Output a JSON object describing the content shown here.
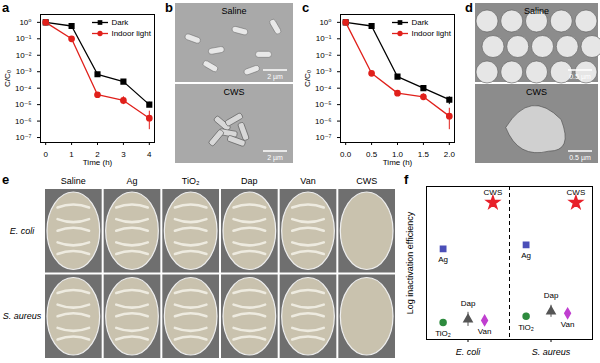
{
  "chart_data": [
    {
      "type": "line",
      "title": "a",
      "x_label": "Time (h)",
      "y_label": "C/C₀",
      "log": "y",
      "legend": "top-right",
      "x": [
        0,
        1,
        2,
        3,
        4
      ],
      "series": [
        {
          "name": "Dark",
          "color": "#000000",
          "marker": "square",
          "line_style": "solid",
          "values": [
            1,
            0.6,
            0.0007,
            0.00025,
            1e-05
          ],
          "errors": [
            null,
            null,
            null,
            null,
            [
              7e-06,
              1.4e-05
            ]
          ]
        },
        {
          "name": "Indoor light",
          "color": "#e0201b",
          "marker": "circle",
          "line_style": "solid",
          "values": [
            1,
            0.1,
            4e-05,
            1.8e-05,
            1.5e-06
          ],
          "errors": [
            null,
            null,
            null,
            [
              1e-05,
              3e-05
            ],
            [
              3e-07,
              4e-06
            ]
          ]
        }
      ],
      "xlim": [
        -0.2,
        4.2
      ],
      "xticks": [
        0,
        1,
        2,
        3,
        4
      ],
      "ylim": [
        5e-08,
        3
      ],
      "yticks": [
        {
          "value": 1,
          "label": "10⁰"
        },
        {
          "value": 0.1,
          "label": "10⁻¹"
        },
        {
          "value": 0.01,
          "label": "10⁻²"
        },
        {
          "value": 0.001,
          "label": "10⁻³"
        },
        {
          "value": 0.0001,
          "label": "10⁻⁴"
        },
        {
          "value": 1e-05,
          "label": "10⁻⁵"
        },
        {
          "value": 1e-06,
          "label": "10⁻⁶"
        },
        {
          "value": 1e-07,
          "label": "10⁻⁷"
        }
      ]
    },
    {
      "type": "line",
      "title": "c",
      "x_label": "Time (h)",
      "y_label": "C/C₀",
      "log": "y",
      "legend": "top-right",
      "x": [
        0,
        0.5,
        1,
        1.5,
        2
      ],
      "series": [
        {
          "name": "Dark",
          "color": "#000000",
          "marker": "square",
          "line_style": "solid",
          "values": [
            1,
            0.6,
            0.0005,
            0.0001,
            2e-05
          ],
          "errors": [
            null,
            null,
            null,
            null,
            [
              1e-05,
              3e-05
            ]
          ]
        },
        {
          "name": "Indoor light",
          "color": "#e0201b",
          "marker": "circle",
          "line_style": "solid",
          "values": [
            1,
            0.0008,
            5e-05,
            3e-05,
            2e-06
          ],
          "errors": [
            null,
            null,
            null,
            [
              2e-05,
              4.5e-05
            ],
            [
              3e-07,
              6e-06
            ]
          ]
        }
      ],
      "xlim": [
        -0.1,
        2.1
      ],
      "xticks": [
        {
          "value": 0,
          "label": "0.0"
        },
        0.5,
        {
          "value": 1,
          "label": "1.0"
        },
        1.5,
        {
          "value": 2,
          "label": "2.0"
        }
      ],
      "ylim": [
        5e-08,
        3
      ],
      "yticks": [
        {
          "value": 1,
          "label": "10⁰"
        },
        {
          "value": 0.1,
          "label": "10⁻¹"
        },
        {
          "value": 0.01,
          "label": "10⁻²"
        },
        {
          "value": 0.001,
          "label": "10⁻³"
        },
        {
          "value": 0.0001,
          "label": "10⁻⁴"
        },
        {
          "value": 1e-05,
          "label": "10⁻⁵"
        },
        {
          "value": 1e-06,
          "label": "10⁻⁶"
        },
        {
          "value": 1e-07,
          "label": "10⁻⁷"
        }
      ]
    },
    {
      "type": "scatter",
      "title": "f",
      "y_label": "Log inactivation efficiency",
      "tick_labels": "x",
      "categories": [
        "E. coli",
        "S. aureus"
      ],
      "series": [
        {
          "name": "Ag",
          "color": "#4b4fb8",
          "marker": "square",
          "values": [
            3.7,
            3.9
          ],
          "errors": [
            0.1,
            0.1
          ]
        },
        {
          "name": "TiO₂",
          "color": "#2e8b3e",
          "marker": "circle",
          "values": [
            0.05,
            0.35
          ],
          "errors": [
            0.05,
            0.15
          ]
        },
        {
          "name": "Dap",
          "color": "#555555",
          "marker": "triangle",
          "values": [
            0.2,
            0.6
          ],
          "errors": [
            0.35,
            0.3
          ]
        },
        {
          "name": "Van",
          "color": "#c03fd0",
          "marker": "diamond",
          "values": [
            0.15,
            0.5
          ],
          "errors": [
            0.1,
            0.15
          ]
        },
        {
          "name": "CWS",
          "color": "#e8202a",
          "marker": "star",
          "values": [
            6,
            6
          ],
          "errors": [
            0,
            0
          ]
        }
      ],
      "ylim": [
        -0.8,
        6.8
      ]
    }
  ],
  "images": [
    {
      "title": "b",
      "panels": [
        {
          "label": "Saline",
          "scale_bar": "2 µm"
        },
        {
          "label": "CWS",
          "scale_bar": "2 µm"
        }
      ]
    },
    {
      "title": "d",
      "panels": [
        {
          "label": "Saline",
          "scale_bar": "0.5 µm"
        },
        {
          "label": "CWS",
          "scale_bar": "0.5 µm"
        }
      ]
    },
    {
      "title": "e",
      "columns": [
        "Saline",
        "Ag",
        "TiO₂",
        "Dap",
        "Van",
        "CWS"
      ],
      "rows": [
        "E. coli",
        "S. aureus"
      ]
    }
  ]
}
